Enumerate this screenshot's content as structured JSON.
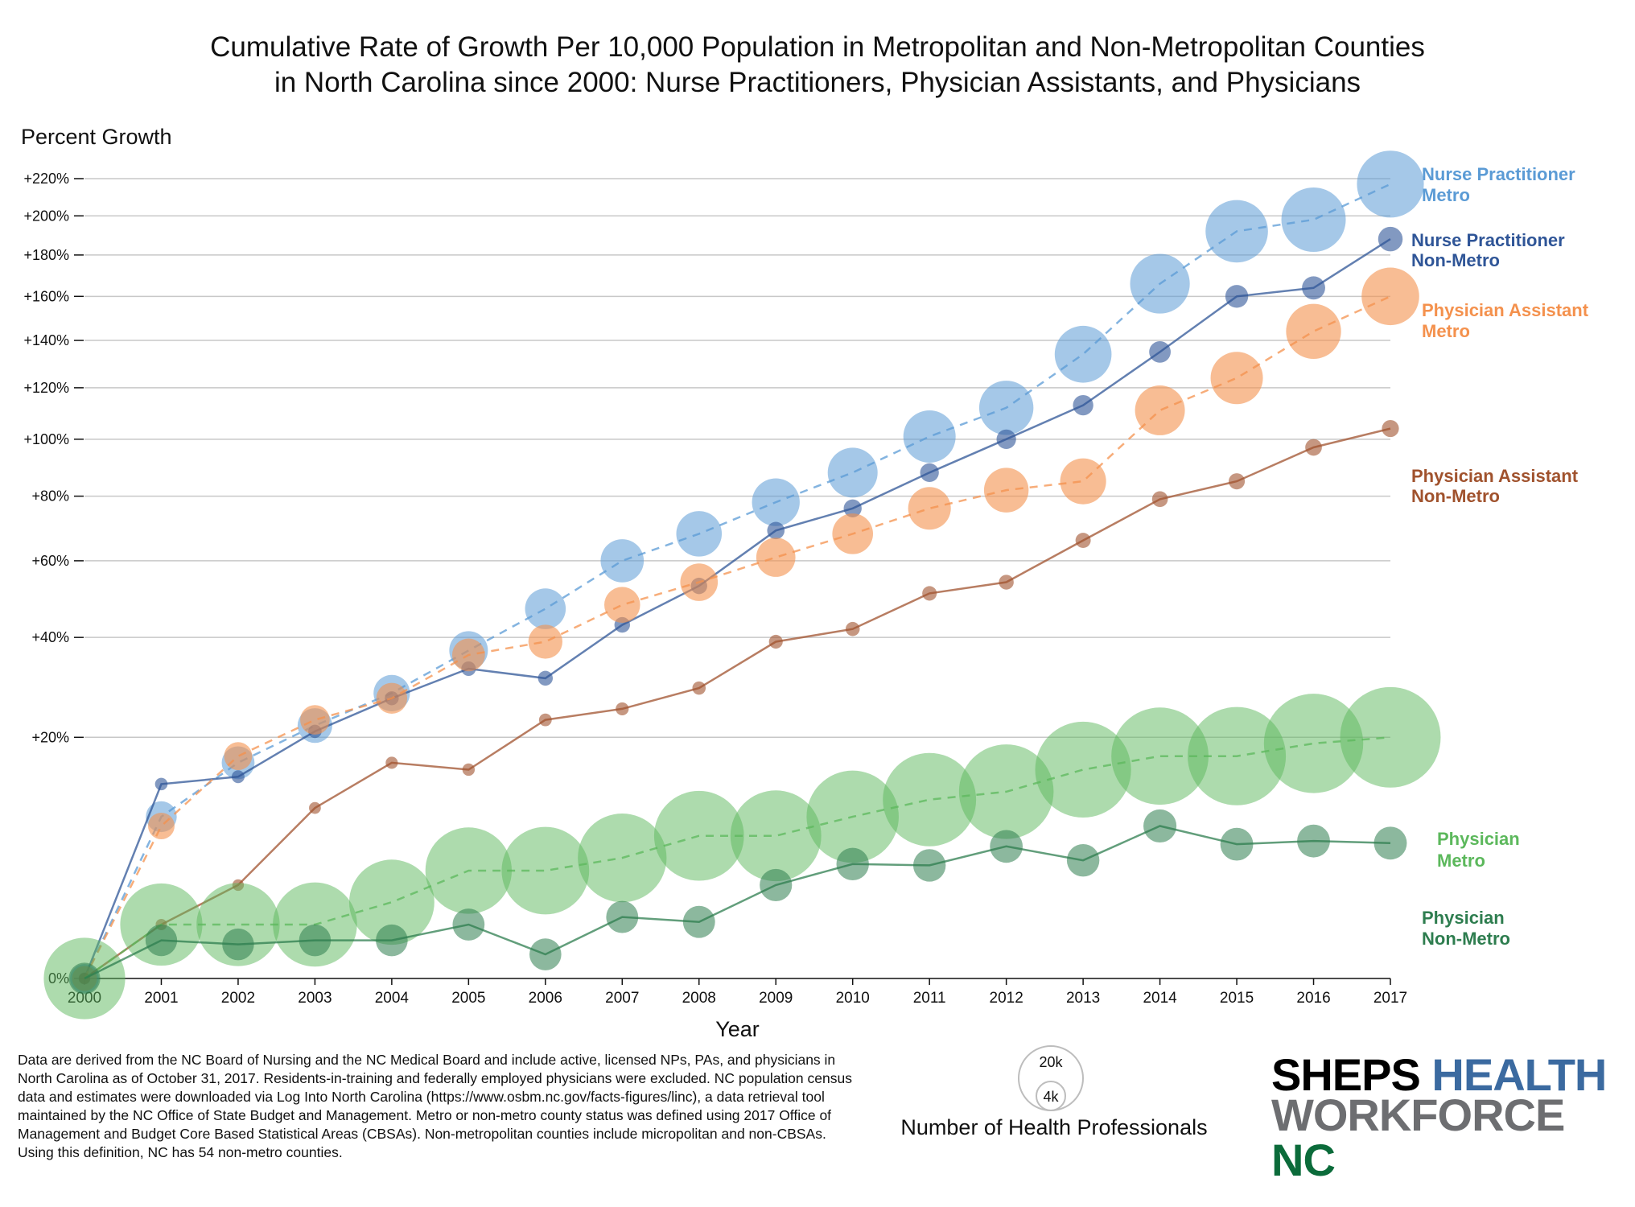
{
  "title_line1": "Cumulative Rate of Growth Per 10,000 Population in Metropolitan and Non-Metropolitan Counties",
  "title_line2": "in North Carolina since 2000: Nurse Practitioners, Physician Assistants, and Physicians",
  "chart_data": {
    "type": "line",
    "ylabel": "Percent Growth",
    "xlabel": "Year",
    "y_scale": "sqrt",
    "ylim": [
      0,
      220
    ],
    "yticks": [
      {
        "value": 0,
        "label": "0%"
      },
      {
        "value": 20,
        "label": "+20%"
      },
      {
        "value": 40,
        "label": "+40%"
      },
      {
        "value": 60,
        "label": "+60%"
      },
      {
        "value": 80,
        "label": "+80%"
      },
      {
        "value": 100,
        "label": "+100%"
      },
      {
        "value": 120,
        "label": "+120%"
      },
      {
        "value": 140,
        "label": "+140%"
      },
      {
        "value": 160,
        "label": "+160%"
      },
      {
        "value": 180,
        "label": "+180%"
      },
      {
        "value": 200,
        "label": "+200%"
      },
      {
        "value": 220,
        "label": "+220%"
      }
    ],
    "grid": true,
    "x": [
      "2000",
      "2001",
      "2002",
      "2003",
      "2004",
      "2005",
      "2006",
      "2007",
      "2008",
      "2009",
      "2010",
      "2011",
      "2012",
      "2013",
      "2014",
      "2015",
      "2016",
      "2017"
    ],
    "series": [
      {
        "name": "Nurse Practitioner Metro",
        "label_line1": "Nurse Practitioner",
        "label_line2": "Metro",
        "color": "#5b9bd5",
        "dash": true,
        "point_opacity": 0.55,
        "values": [
          0,
          9,
          16,
          22,
          28,
          37,
          47,
          60,
          68,
          78,
          88,
          101,
          112,
          134,
          166,
          192,
          198,
          217
        ],
        "counts": [
          2000,
          2300,
          2600,
          2900,
          3200,
          3600,
          4000,
          4500,
          5000,
          5500,
          6000,
          6600,
          7100,
          7800,
          8600,
          9400,
          10000,
          10800
        ]
      },
      {
        "name": "Nurse Practitioner Non-Metro",
        "label_line1": "Nurse Practitioner",
        "label_line2": "Non-Metro",
        "color": "#2f5597",
        "dash": false,
        "point_opacity": 0.6,
        "values": [
          0,
          13,
          14,
          21,
          27,
          33,
          31,
          43,
          53,
          69,
          76,
          88,
          100,
          113,
          135,
          160,
          164,
          188
        ],
        "counts": [
          350,
          380,
          400,
          430,
          470,
          510,
          530,
          590,
          650,
          730,
          780,
          850,
          920,
          1000,
          1120,
          1260,
          1300,
          1450
        ]
      },
      {
        "name": "Physician Assistant Metro",
        "label_line1": "Physician Assistant",
        "label_line2": "Metro",
        "color": "#f4914d",
        "dash": true,
        "point_opacity": 0.6,
        "values": [
          0,
          8,
          17,
          23,
          27,
          36,
          39,
          48,
          54,
          61,
          68,
          76,
          82,
          85,
          111,
          124,
          144,
          160
        ],
        "counts": [
          1500,
          1700,
          1900,
          2100,
          2300,
          2600,
          2800,
          3100,
          3400,
          3700,
          4000,
          4400,
          4800,
          5100,
          6000,
          6600,
          7300,
          8000
        ]
      },
      {
        "name": "Physician Assistant Non-Metro",
        "label_line1": "Physician Assistant",
        "label_line2": "Non-Metro",
        "color": "#a0522d",
        "dash": false,
        "point_opacity": 0.6,
        "values": [
          0,
          1,
          3,
          10,
          16,
          15,
          23,
          25,
          29,
          39,
          42,
          51,
          54,
          66,
          79,
          85,
          97,
          104
        ],
        "counts": [
          300,
          310,
          320,
          340,
          360,
          370,
          390,
          410,
          430,
          460,
          480,
          510,
          530,
          560,
          600,
          630,
          670,
          700
        ]
      },
      {
        "name": "Physician Metro",
        "label_line1": "Physician",
        "label_line2": "Metro",
        "color": "#5cb85c",
        "dash": true,
        "point_opacity": 0.5,
        "values": [
          0,
          1,
          1,
          1,
          2,
          4,
          4,
          5,
          7,
          7,
          9,
          11,
          12,
          15,
          17,
          17,
          19,
          20
        ],
        "counts": [
          16000,
          16300,
          16700,
          17100,
          17500,
          18000,
          18500,
          19000,
          19500,
          19900,
          20500,
          21000,
          21600,
          22200,
          22800,
          23300,
          23800,
          24400
        ]
      },
      {
        "name": "Physician Non-Metro",
        "label_line1": "Physician",
        "label_line2": "Non-Metro",
        "color": "#2e7d4f",
        "dash": false,
        "point_opacity": 0.55,
        "values": [
          0,
          0.5,
          0.4,
          0.5,
          0.5,
          1,
          0.2,
          1.3,
          1.1,
          3,
          4.5,
          4.4,
          6,
          4.8,
          8,
          6.2,
          6.5,
          6.3
        ],
        "counts": [
          2400,
          2420,
          2430,
          2440,
          2450,
          2470,
          2450,
          2480,
          2480,
          2520,
          2550,
          2550,
          2590,
          2560,
          2640,
          2600,
          2610,
          2610
        ]
      }
    ]
  },
  "size_legend": {
    "title": "Number of Health Professionals",
    "items": [
      {
        "label": "20k",
        "value": 20000
      },
      {
        "label": "4k",
        "value": 4000
      }
    ]
  },
  "note": "Data are derived from the NC Board of Nursing and the NC Medical Board and include active, licensed NPs, PAs, and physicians in North Carolina as of October 31, 2017. Residents-in-training and federally employed physicians were excluded. NC population census data and estimates were downloaded via Log Into North Carolina (https://www.osbm.nc.gov/facts-figures/linc), a data retrieval tool maintained by the NC Office of State Budget and Management.  Metro or non-metro county status was defined using 2017 Office of Management and Budget Core Based Statistical Areas (CBSAs). Non-metropolitan counties include micropolitan and non-CBSAs. Using this definition, NC has 54 non-metro counties.",
  "logo": {
    "line1_a": "SHEPS ",
    "line1_b": "HEALTH",
    "line2_a": "WORKFORCE ",
    "line2_b": "NC",
    "color_dark": "#000000",
    "color_blue": "#3b6aa0",
    "color_grey": "#6d6e71",
    "color_green": "#0b6b3a"
  }
}
